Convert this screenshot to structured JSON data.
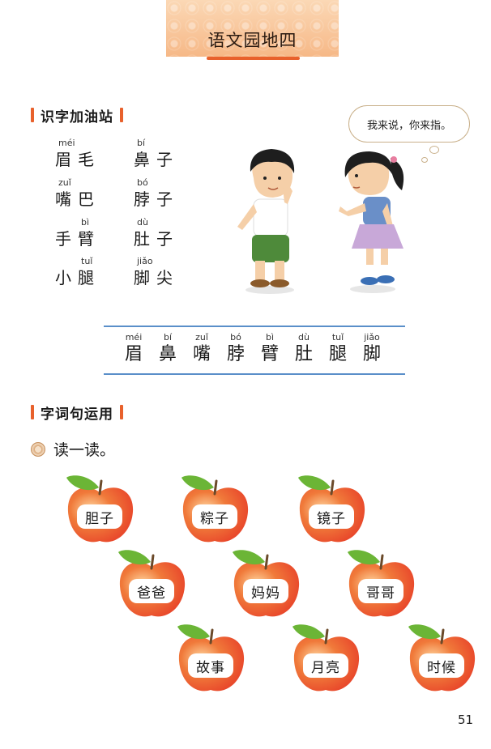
{
  "title": "语文园地四",
  "section1": {
    "label": "识字加油站"
  },
  "word_grid": [
    {
      "pinyin": "méi",
      "text": "眉毛"
    },
    {
      "pinyin": "bí",
      "text": "鼻子"
    },
    {
      "pinyin": "zuǐ",
      "text": "嘴巴"
    },
    {
      "pinyin": "bó",
      "text": "脖子"
    },
    {
      "pinyin": "bì",
      "text": "手臂"
    },
    {
      "pinyin": "dù",
      "text": "肚子"
    },
    {
      "pinyin": "tuǐ",
      "text": "小腿"
    },
    {
      "pinyin": "jiǎo",
      "text": "脚尖"
    }
  ],
  "bubble": {
    "text": "我来说，你来指。"
  },
  "char_strip": [
    {
      "pinyin": "méi",
      "char": "眉"
    },
    {
      "pinyin": "bí",
      "char": "鼻"
    },
    {
      "pinyin": "zuǐ",
      "char": "嘴"
    },
    {
      "pinyin": "bó",
      "char": "脖"
    },
    {
      "pinyin": "bì",
      "char": "臂"
    },
    {
      "pinyin": "dù",
      "char": "肚"
    },
    {
      "pinyin": "tuǐ",
      "char": "腿"
    },
    {
      "pinyin": "jiǎo",
      "char": "脚"
    }
  ],
  "section2": {
    "label": "字词句运用"
  },
  "read": {
    "text": "读一读。"
  },
  "apples": [
    "胆子",
    "粽子",
    "镜子",
    "爸爸",
    "妈妈",
    "哥哥",
    "故事",
    "月亮",
    "时候"
  ],
  "colors": {
    "accent": "#e8612c",
    "strip_line": "#5a8fc9",
    "apple_red": "#e8442a",
    "leaf_green": "#6bb536"
  },
  "page_number": "51"
}
